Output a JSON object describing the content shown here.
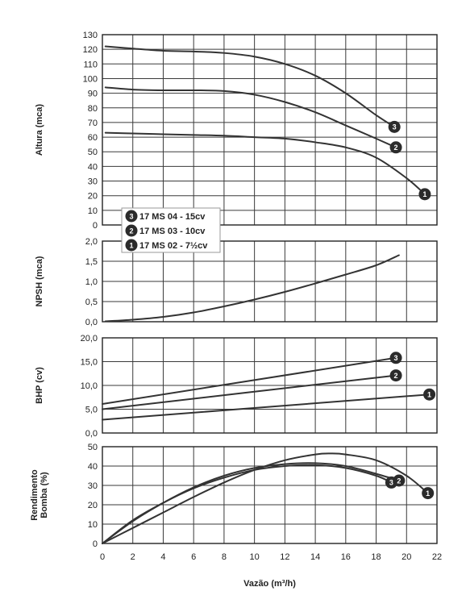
{
  "chart_data": {
    "type": "line",
    "xlabel": "Vazão (m³/h)",
    "xlim": [
      0,
      22
    ],
    "xticks": [
      "0",
      "2",
      "4",
      "6",
      "8",
      "10",
      "12",
      "14",
      "16",
      "18",
      "20",
      "22"
    ],
    "legend": [
      {
        "marker": "3",
        "label": "17 MS 04 - 15cv"
      },
      {
        "marker": "2",
        "label": "17 MS 03 - 10cv"
      },
      {
        "marker": "1",
        "label": "17 MS 02 - 7½cv"
      }
    ],
    "panels": [
      {
        "ylabel": "Altura (mca)",
        "ylim": [
          0,
          130
        ],
        "yticks": [
          "0",
          "10",
          "20",
          "30",
          "40",
          "50",
          "60",
          "70",
          "80",
          "90",
          "100",
          "110",
          "120",
          "130"
        ],
        "series": [
          {
            "marker": "3",
            "x": [
              0.2,
              2,
              4,
              6,
              8,
              10,
              12,
              14,
              16,
              18,
              19.2
            ],
            "y": [
              122,
              120.5,
              119,
              118.5,
              117.5,
              115,
              110,
              102,
              90,
              75,
              67
            ]
          },
          {
            "marker": "2",
            "x": [
              0.2,
              2,
              4,
              6,
              8,
              10,
              12,
              14,
              16,
              18,
              19.3
            ],
            "y": [
              94,
              92.5,
              92,
              92,
              91.5,
              89,
              84,
              77,
              68,
              59,
              53
            ]
          },
          {
            "marker": "1",
            "x": [
              0.2,
              2,
              4,
              6,
              8,
              10,
              12,
              14,
              16,
              18,
              20,
              21.2
            ],
            "y": [
              63,
              62.5,
              62,
              61.5,
              61,
              60,
              59,
              56.5,
              53,
              46,
              32,
              21
            ]
          }
        ]
      },
      {
        "ylabel": "NPSH (mca)",
        "ylim": [
          0,
          2
        ],
        "yticks": [
          "0,0",
          "0,5",
          "1,0",
          "1,5",
          "2,0"
        ],
        "series": [
          {
            "x": [
              0.2,
              2,
              4,
              6,
              8,
              10,
              12,
              14,
              16,
              18,
              19.5
            ],
            "y": [
              0.01,
              0.05,
              0.12,
              0.23,
              0.38,
              0.55,
              0.74,
              0.95,
              1.17,
              1.4,
              1.65
            ]
          }
        ]
      },
      {
        "ylabel": "BHP (cv)",
        "ylim": [
          0,
          20
        ],
        "yticks": [
          "0,0",
          "5,0",
          "10,0",
          "15,0",
          "20,0"
        ],
        "series": [
          {
            "marker": "3",
            "x": [
              0,
              19.3
            ],
            "y": [
              6.1,
              15.8
            ]
          },
          {
            "marker": "2",
            "x": [
              0,
              19.3
            ],
            "y": [
              5.0,
              12.1
            ]
          },
          {
            "marker": "1",
            "x": [
              0,
              21.5
            ],
            "y": [
              2.8,
              8.1
            ]
          }
        ]
      },
      {
        "ylabel": [
          "Rendimento",
          "Bomba (%)"
        ],
        "ylim": [
          0,
          50
        ],
        "yticks": [
          "0",
          "10",
          "20",
          "30",
          "40",
          "50"
        ],
        "series": [
          {
            "marker": "3",
            "x": [
              0,
              2,
              4,
              6,
              8,
              10,
              12,
              14,
              16,
              18,
              19
            ],
            "y": [
              0,
              12,
              21,
              28.5,
              34,
              38,
              40,
              40.5,
              39,
              35,
              31.5
            ]
          },
          {
            "marker": "2",
            "x": [
              0,
              2,
              4,
              6,
              8,
              10,
              12,
              14,
              16,
              18,
              19.5
            ],
            "y": [
              0,
              11.5,
              21,
              29,
              35,
              39,
              41,
              41.5,
              40,
              36,
              32.5
            ]
          },
          {
            "marker": "1",
            "x": [
              0,
              2,
              4,
              6,
              8,
              10,
              12,
              14,
              15,
              16,
              18,
              20,
              21.4
            ],
            "y": [
              0,
              8,
              16,
              24,
              31.5,
              38,
              43,
              46,
              46.5,
              46,
              43,
              35,
              26
            ]
          }
        ]
      }
    ]
  }
}
